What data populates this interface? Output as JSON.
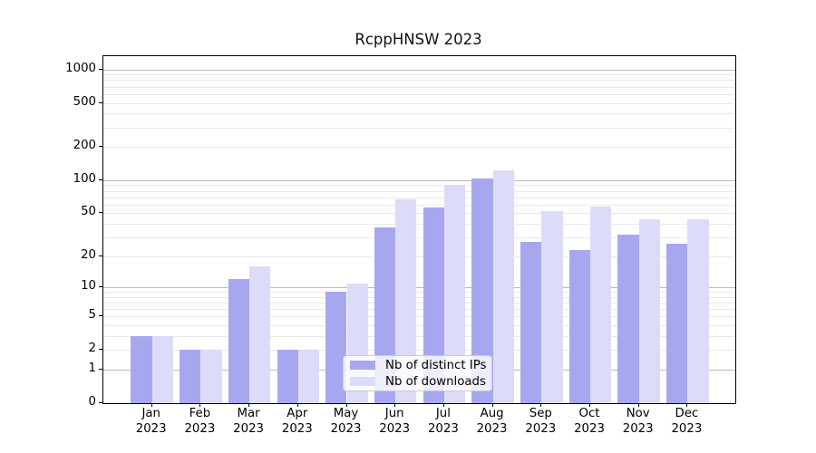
{
  "figure_title": "RcppHNSW 2023",
  "chart_data": {
    "type": "bar",
    "title": "RcppHNSW 2023",
    "categories": [
      "Jan",
      "Feb",
      "Mar",
      "Apr",
      "May",
      "Jun",
      "Jul",
      "Aug",
      "Sep",
      "Oct",
      "Nov",
      "Dec"
    ],
    "year_label": "2023",
    "series": [
      {
        "name": "Nb of distinct IPs",
        "color": "#a7a7f0",
        "values": [
          3,
          2,
          12,
          2,
          9,
          37,
          57,
          103,
          27,
          23,
          32,
          26
        ]
      },
      {
        "name": "Nb of downloads",
        "color": "#dcdcf8",
        "values": [
          3,
          2,
          16,
          2,
          11,
          67,
          90,
          122,
          52,
          58,
          44,
          44
        ]
      }
    ],
    "yscale": "log1p",
    "ylim": [
      0,
      1312
    ],
    "yticks": [
      0,
      1,
      2,
      5,
      10,
      20,
      50,
      100,
      200,
      500,
      1000
    ],
    "grid": {
      "major": [
        1,
        10,
        100,
        1000
      ],
      "minor": [
        2,
        3,
        4,
        5,
        6,
        7,
        8,
        9,
        20,
        30,
        40,
        50,
        60,
        70,
        80,
        90,
        200,
        300,
        400,
        500,
        600,
        700,
        800,
        900
      ],
      "major_color": "#bbbbbb",
      "minor_color": "#e9e9e9"
    },
    "legend_position": "lower center",
    "colors": {
      "background": "#ffffff",
      "spine": "#000000",
      "text": "#000000"
    }
  }
}
